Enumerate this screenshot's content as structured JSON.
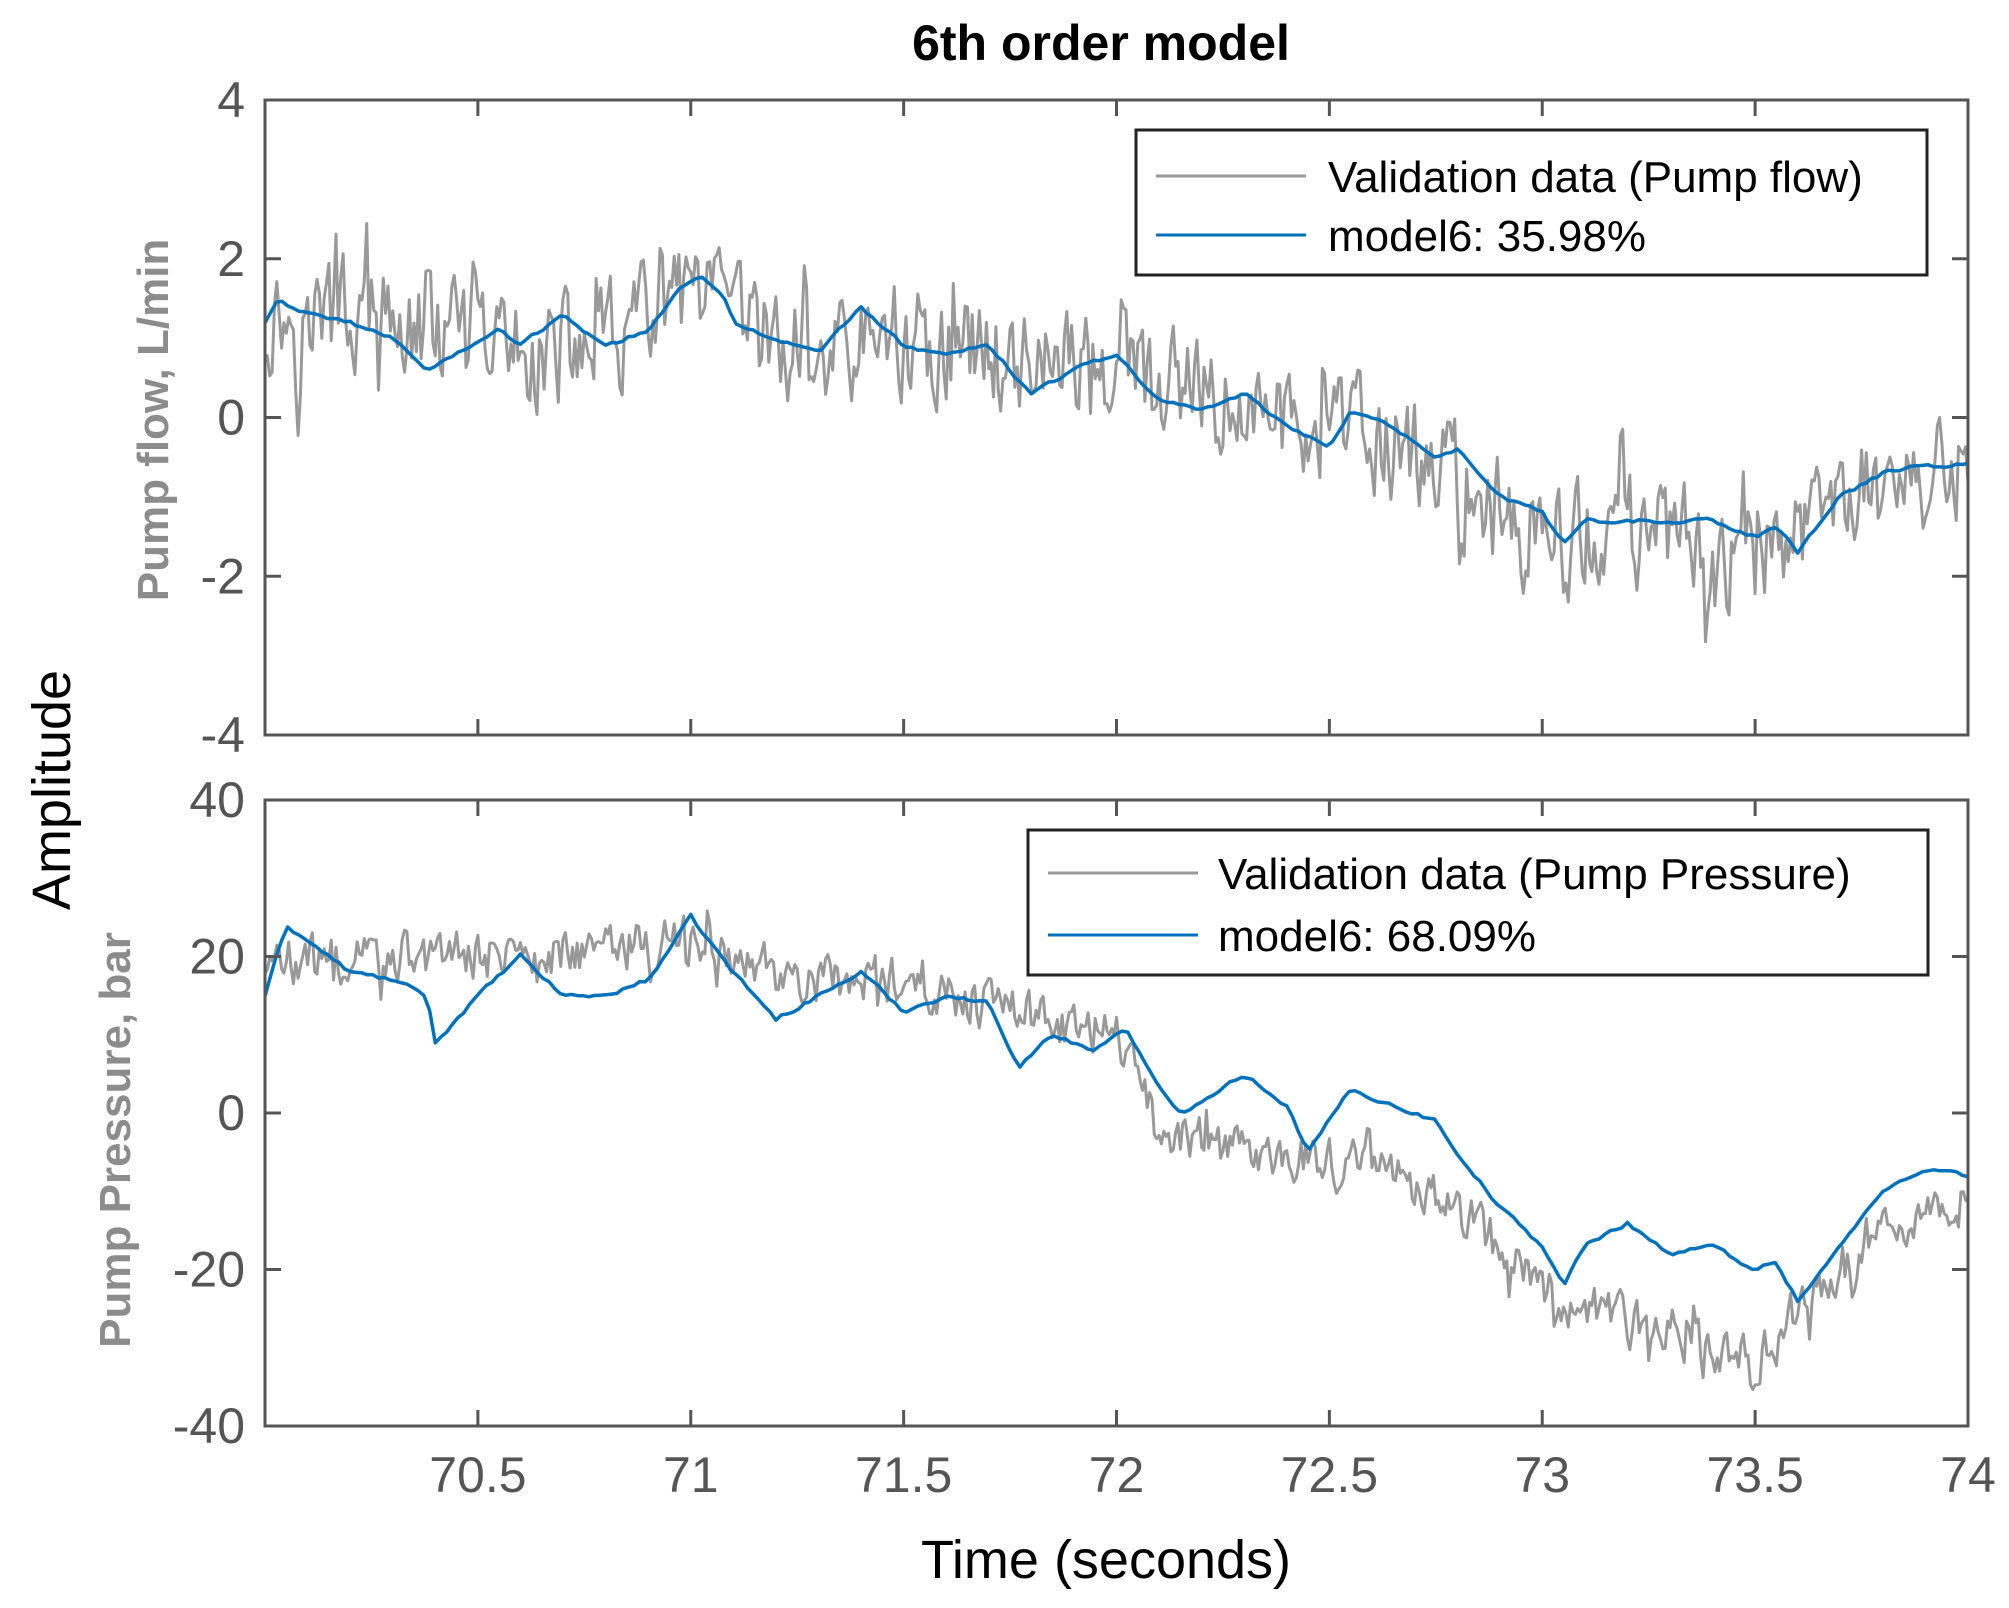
{
  "chart_data": {
    "type": "line",
    "title": "6th order model",
    "xlabel": "Time (seconds)",
    "shared_ylabel": "Amplitude",
    "xlim": [
      70,
      74
    ],
    "xticks": [
      70.5,
      71,
      71.5,
      72,
      72.5,
      73,
      73.5,
      74
    ],
    "xtick_labels": [
      "70.5",
      "71",
      "71.5",
      "72",
      "72.5",
      "73",
      "73.5",
      "74"
    ],
    "colors": {
      "validation": "#999999",
      "model": "#0072bd",
      "axes": "#555555",
      "ylabel": "#8c8c8c"
    },
    "subplots": [
      {
        "ylabel": "Pump flow, L/min",
        "ylim": [
          -4,
          4
        ],
        "yticks": [
          -4,
          -2,
          0,
          2,
          4
        ],
        "ytick_labels": [
          "-4",
          "-2",
          "0",
          "2",
          "4"
        ],
        "legend_position": "top-right",
        "series": [
          {
            "name": "Validation data (Pump flow)",
            "kind": "validation",
            "x": [
              70,
              70.25,
              70.5,
              70.75,
              71,
              71.25,
              71.5,
              71.75,
              72,
              72.25,
              72.5,
              72.75,
              73,
              73.25,
              73.5,
              73.75,
              74
            ],
            "values": [
              1.3,
              1.2,
              0.9,
              0.8,
              1.5,
              0.8,
              0.9,
              0.8,
              0.6,
              0.1,
              -0.1,
              -0.6,
              -1.6,
              -1.4,
              -1.9,
              -0.8,
              -0.7
            ],
            "noise_amplitude": 1.0
          },
          {
            "name": "model6: 35.98%",
            "kind": "model",
            "x": [
              70,
              70.03,
              70.1,
              70.2,
              70.3,
              70.38,
              70.45,
              70.55,
              70.6,
              70.7,
              70.8,
              70.9,
              70.97,
              71.02,
              71.08,
              71.1,
              71.2,
              71.3,
              71.4,
              71.5,
              71.6,
              71.7,
              71.8,
              71.9,
              72.0,
              72.1,
              72.2,
              72.3,
              72.4,
              72.5,
              72.55,
              72.65,
              72.75,
              72.8,
              72.9,
              73.0,
              73.05,
              73.1,
              73.2,
              73.3,
              73.4,
              73.5,
              73.55,
              73.6,
              73.7,
              73.8,
              73.9,
              74.0
            ],
            "values": [
              1.2,
              1.5,
              1.3,
              1.2,
              1.0,
              0.6,
              0.8,
              1.1,
              0.9,
              1.3,
              0.9,
              1.1,
              1.6,
              1.8,
              1.5,
              1.2,
              1.0,
              0.8,
              1.4,
              0.9,
              0.8,
              0.9,
              0.3,
              0.6,
              0.8,
              0.2,
              0.1,
              0.3,
              -0.1,
              -0.4,
              0.1,
              -0.1,
              -0.5,
              -0.4,
              -1.0,
              -1.2,
              -1.6,
              -1.3,
              -1.3,
              -1.3,
              -1.3,
              -1.5,
              -1.4,
              -1.7,
              -1.0,
              -0.7,
              -0.6,
              -0.6
            ]
          }
        ]
      },
      {
        "ylabel": "Pump Pressure, bar",
        "ylim": [
          -40,
          40
        ],
        "yticks": [
          -40,
          -20,
          0,
          20,
          40
        ],
        "ytick_labels": [
          "-40",
          "-20",
          "0",
          "20",
          "40"
        ],
        "legend_position": "top-right",
        "series": [
          {
            "name": "Validation data (Pump Pressure)",
            "kind": "validation",
            "x": [
              70,
              70.25,
              70.5,
              70.75,
              71,
              71.25,
              71.5,
              71.75,
              72,
              72.1,
              72.25,
              72.5,
              72.75,
              73,
              73.25,
              73.5,
              73.75,
              74
            ],
            "values": [
              19,
              20,
              20,
              21,
              22,
              17,
              17,
              13,
              10,
              -3,
              -4,
              -6,
              -10,
              -22,
              -28,
              -32,
              -17,
              -11
            ],
            "noise_amplitude": 4.5
          },
          {
            "name": "model6: 68.09%",
            "kind": "model",
            "x": [
              70,
              70.05,
              70.1,
              70.2,
              70.3,
              70.38,
              70.4,
              70.5,
              70.6,
              70.7,
              70.8,
              70.9,
              71.0,
              71.1,
              71.2,
              71.3,
              71.4,
              71.5,
              71.6,
              71.7,
              71.77,
              71.85,
              71.95,
              72.02,
              72.1,
              72.15,
              72.3,
              72.4,
              72.45,
              72.55,
              72.65,
              72.75,
              72.8,
              72.9,
              73.0,
              73.05,
              73.1,
              73.2,
              73.3,
              73.4,
              73.5,
              73.55,
              73.6,
              73.7,
              73.8,
              73.9,
              74.0
            ],
            "values": [
              15,
              24,
              22,
              18,
              17,
              15,
              9,
              15,
              20,
              15,
              15,
              17,
              25,
              18,
              12,
              15,
              18,
              13,
              15,
              14,
              6,
              10,
              8,
              11,
              3,
              0,
              5,
              1,
              -5,
              3,
              1,
              -1,
              -5,
              -12,
              -17,
              -22,
              -17,
              -14,
              -18,
              -17,
              -20,
              -19,
              -24,
              -17,
              -10,
              -7,
              -8
            ]
          }
        ]
      }
    ]
  }
}
